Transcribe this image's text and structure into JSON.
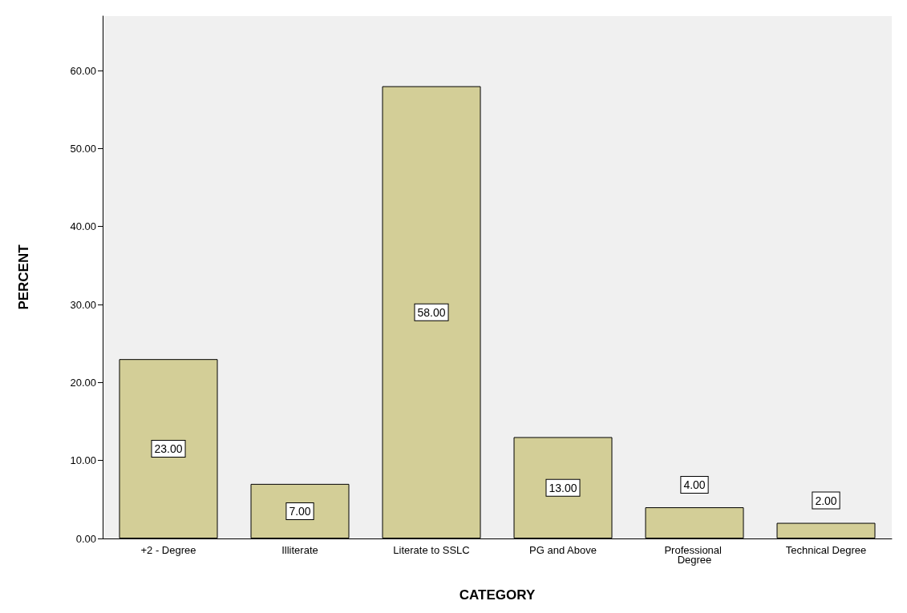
{
  "chart_data": {
    "type": "bar",
    "xlabel": "CATEGORY",
    "ylabel": "PERCENT",
    "categories": [
      "+2 - Degree",
      "Illiterate",
      "Literate to SSLC",
      "PG and Above",
      "Professional Degree",
      "Technical Degree"
    ],
    "values": [
      23,
      7,
      58,
      13,
      4,
      2
    ],
    "value_labels": [
      "23.00",
      "7.00",
      "58.00",
      "13.00",
      "4.00",
      "2.00"
    ],
    "color": "#d3ce97",
    "ylim": [
      0,
      67
    ],
    "yticks": [
      {
        "value": 0,
        "label": "0.00"
      },
      {
        "value": 10,
        "label": "10.00"
      },
      {
        "value": 20,
        "label": "20.00"
      },
      {
        "value": 30,
        "label": "30.00"
      },
      {
        "value": 40,
        "label": "40.00"
      },
      {
        "value": 50,
        "label": "50.00"
      },
      {
        "value": 60,
        "label": "60.00"
      }
    ],
    "grid": false
  }
}
